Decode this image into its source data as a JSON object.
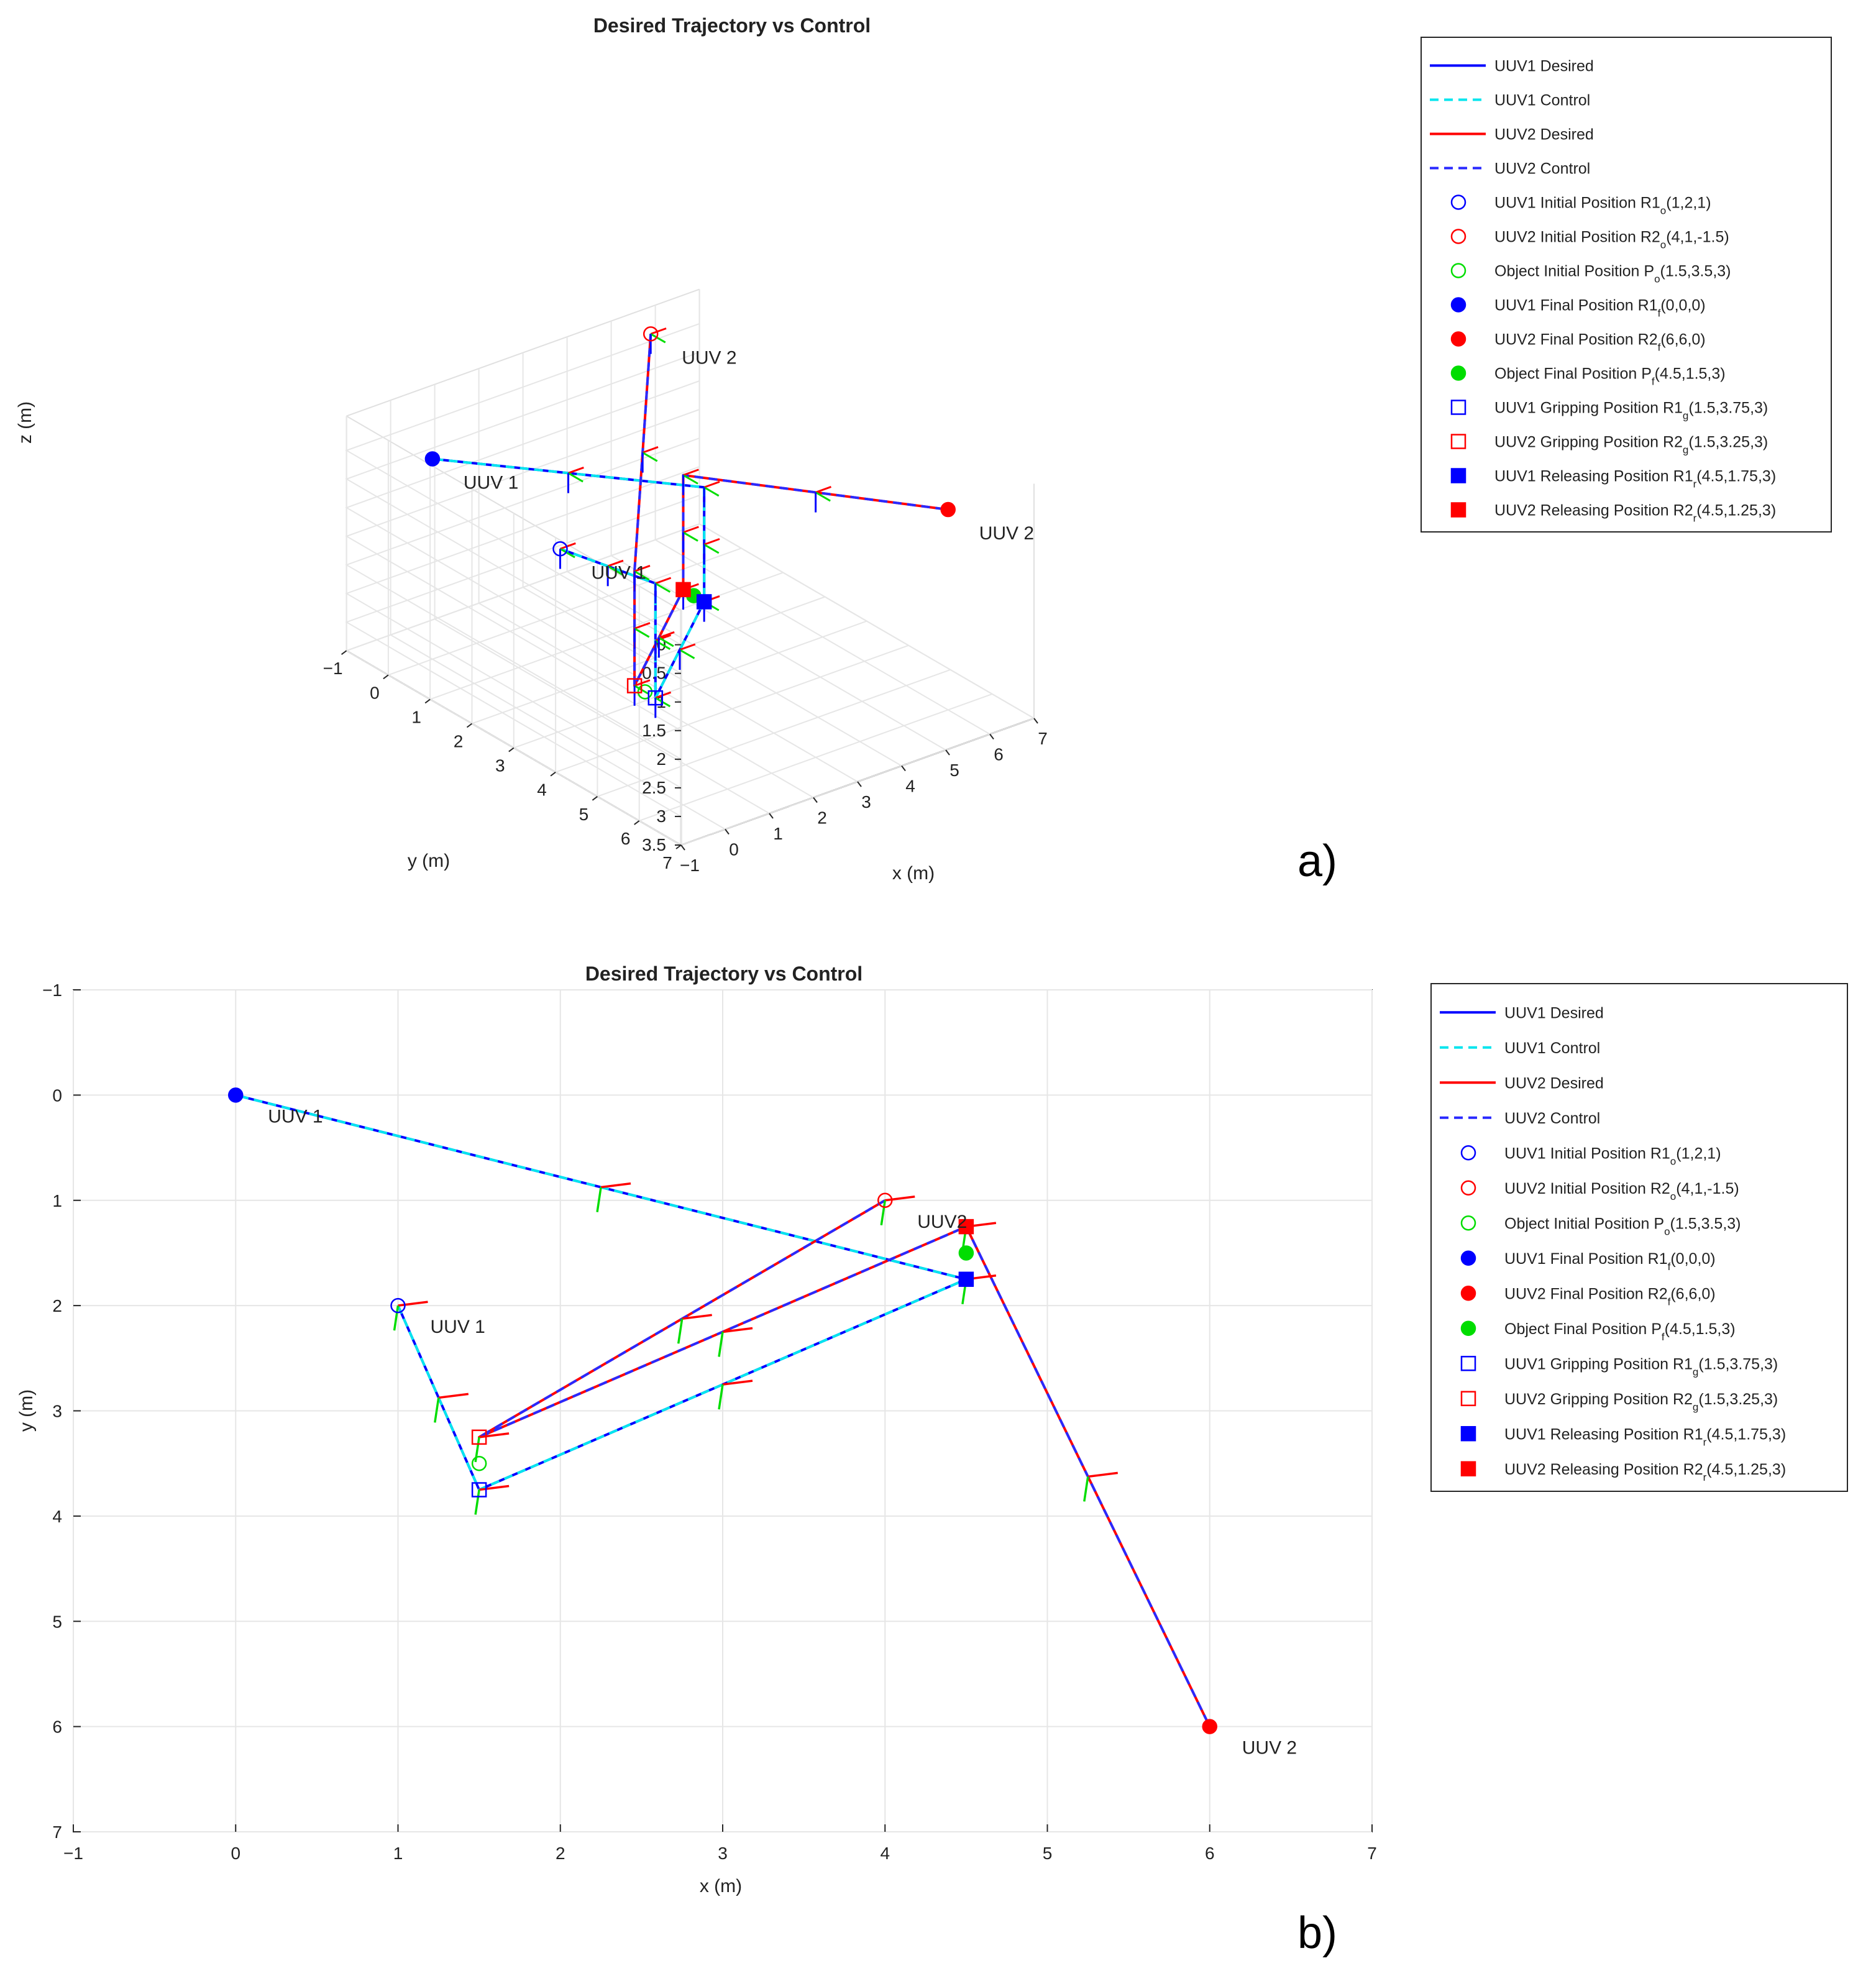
{
  "colors": {
    "uuv1_desired": "#0000ff",
    "uuv1_control": "#00e5ee",
    "uuv2_desired": "#ff0000",
    "uuv2_control": "#2929ff",
    "object": "#00dd00",
    "grid": "#e6e6e6",
    "axis": "#262626"
  },
  "panel_a_label": "a)",
  "panel_b_label": "b)",
  "legend_entries": [
    {
      "label": "UUV1 Desired",
      "sub": "",
      "tail": "",
      "marker": "line-solid",
      "color": "#0000ff"
    },
    {
      "label": "UUV1 Control",
      "sub": "",
      "tail": "",
      "marker": "line-dashed",
      "color": "#00e5ee"
    },
    {
      "label": "UUV2 Desired",
      "sub": "",
      "tail": "",
      "marker": "line-solid",
      "color": "#ff0000"
    },
    {
      "label": "UUV2 Control",
      "sub": "",
      "tail": "",
      "marker": "line-dashed",
      "color": "#2929ff"
    },
    {
      "label": "UUV1 Initial Position R1",
      "sub": "o",
      "tail": "(1,2,1)",
      "marker": "circle-open",
      "color": "#0000ff"
    },
    {
      "label": "UUV2 Initial Position R2",
      "sub": "o",
      "tail": "(4,1,-1.5)",
      "marker": "circle-open",
      "color": "#ff0000"
    },
    {
      "label": "Object Initial Position P",
      "sub": "o",
      "tail": "(1.5,3.5,3)",
      "marker": "circle-open",
      "color": "#00dd00"
    },
    {
      "label": "UUV1 Final Position R1",
      "sub": "f",
      "tail": "(0,0,0)",
      "marker": "circle-filled",
      "color": "#0000ff"
    },
    {
      "label": "UUV2 Final Position R2",
      "sub": "f",
      "tail": "(6,6,0)",
      "marker": "circle-filled",
      "color": "#ff0000"
    },
    {
      "label": "Object Final Position P",
      "sub": "f",
      "tail": "(4.5,1.5,3)",
      "marker": "circle-filled",
      "color": "#00dd00"
    },
    {
      "label": "UUV1 Gripping Position R1",
      "sub": "g",
      "tail": "(1.5,3.75,3)",
      "marker": "square-open",
      "color": "#0000ff"
    },
    {
      "label": "UUV2 Gripping Position R2",
      "sub": "g",
      "tail": "(1.5,3.25,3)",
      "marker": "square-open",
      "color": "#ff0000"
    },
    {
      "label": "UUV1 Releasing Position R1",
      "sub": "r",
      "tail": "(4.5,1.75,3)",
      "marker": "square-filled",
      "color": "#0000ff"
    },
    {
      "label": "UUV2 Releasing Position R2",
      "sub": "r",
      "tail": "(4.5,1.25,3)",
      "marker": "square-filled",
      "color": "#ff0000"
    }
  ],
  "chart_data": [
    {
      "type": "line",
      "view": "3d",
      "title": "Desired Trajectory vs Control",
      "xlabel": "x (m)",
      "ylabel": "y (m)",
      "zlabel": "z (m)",
      "xlim": [
        -1,
        7
      ],
      "ylim": [
        -1,
        7
      ],
      "zlim": [
        -0.5,
        3.5
      ],
      "z_reversed": true,
      "xticks": [
        "−1",
        "0",
        "1",
        "2",
        "3",
        "4",
        "5",
        "6",
        "7"
      ],
      "yticks": [
        "−1",
        "0",
        "1",
        "2",
        "3",
        "4",
        "5",
        "6",
        "7"
      ],
      "zticks": [
        "0",
        "0.5",
        "1",
        "1.5",
        "2",
        "2.5",
        "3",
        "3.5"
      ],
      "grid": true,
      "legend_position": "outside-right",
      "annotations": [
        {
          "text": "UUV 1",
          "at": [
            0,
            0,
            0
          ]
        },
        {
          "text": "UUV 1",
          "at": [
            1,
            2,
            1
          ]
        },
        {
          "text": "UUV 2",
          "at": [
            6,
            6,
            0
          ]
        },
        {
          "text": "UUV 2",
          "at": [
            4,
            1,
            -1.5
          ]
        }
      ],
      "series": [
        {
          "name": "UUV1 Desired",
          "points": [
            [
              1,
              2,
              1
            ],
            [
              1.5,
              3.75,
              1
            ],
            [
              1.5,
              3.75,
              3
            ],
            [
              4.5,
              1.75,
              3
            ],
            [
              4.5,
              1.75,
              1
            ],
            [
              0,
              0,
              0
            ]
          ]
        },
        {
          "name": "UUV1 Control",
          "points": [
            [
              1,
              2,
              1
            ],
            [
              1.5,
              3.75,
              1
            ],
            [
              1.5,
              3.75,
              3
            ],
            [
              4.5,
              1.75,
              3
            ],
            [
              4.5,
              1.75,
              1
            ],
            [
              0,
              0,
              0
            ]
          ]
        },
        {
          "name": "UUV2 Desired",
          "points": [
            [
              4,
              1,
              -1.5
            ],
            [
              1.5,
              3.25,
              1
            ],
            [
              1.5,
              3.25,
              3
            ],
            [
              4.5,
              1.25,
              3
            ],
            [
              4.5,
              1.25,
              1
            ],
            [
              6,
              6,
              0
            ]
          ]
        },
        {
          "name": "UUV2 Control",
          "points": [
            [
              4,
              1,
              -1.5
            ],
            [
              1.5,
              3.25,
              1
            ],
            [
              1.5,
              3.25,
              3
            ],
            [
              4.5,
              1.25,
              3
            ],
            [
              4.5,
              1.25,
              1
            ],
            [
              6,
              6,
              0
            ]
          ]
        }
      ],
      "markers": [
        {
          "series": "UUV1 Initial Position",
          "at": [
            1,
            2,
            1
          ],
          "shape": "circle-open",
          "color": "#0000ff"
        },
        {
          "series": "UUV2 Initial Position",
          "at": [
            4,
            1,
            -1.5
          ],
          "shape": "circle-open",
          "color": "#ff0000"
        },
        {
          "series": "Object Initial Position",
          "at": [
            1.5,
            3.5,
            3
          ],
          "shape": "circle-open",
          "color": "#00dd00"
        },
        {
          "series": "UUV1 Final Position",
          "at": [
            0,
            0,
            0
          ],
          "shape": "circle-filled",
          "color": "#0000ff"
        },
        {
          "series": "UUV2 Final Position",
          "at": [
            6,
            6,
            0
          ],
          "shape": "circle-filled",
          "color": "#ff0000"
        },
        {
          "series": "Object Final Position",
          "at": [
            4.5,
            1.5,
            3
          ],
          "shape": "circle-filled",
          "color": "#00dd00"
        },
        {
          "series": "UUV1 Gripping Position",
          "at": [
            1.5,
            3.75,
            3
          ],
          "shape": "square-open",
          "color": "#0000ff"
        },
        {
          "series": "UUV2 Gripping Position",
          "at": [
            1.5,
            3.25,
            3
          ],
          "shape": "square-open",
          "color": "#ff0000"
        },
        {
          "series": "UUV1 Releasing Position",
          "at": [
            4.5,
            1.75,
            3
          ],
          "shape": "square-filled",
          "color": "#0000ff"
        },
        {
          "series": "UUV2 Releasing Position",
          "at": [
            4.5,
            1.25,
            3
          ],
          "shape": "square-filled",
          "color": "#ff0000"
        }
      ]
    },
    {
      "type": "line",
      "view": "top",
      "title": "Desired Trajectory vs Control",
      "xlabel": "x (m)",
      "ylabel": "y (m)",
      "xlim": [
        -1,
        7
      ],
      "ylim": [
        -1,
        7
      ],
      "y_reversed": true,
      "xticks": [
        "−1",
        "0",
        "1",
        "2",
        "3",
        "4",
        "5",
        "6",
        "7"
      ],
      "yticks": [
        "−1",
        "0",
        "1",
        "2",
        "3",
        "4",
        "5",
        "6",
        "7"
      ],
      "grid": true,
      "legend_position": "outside-right",
      "annotations": [
        {
          "text": "UUV 1",
          "at": [
            0,
            0
          ]
        },
        {
          "text": "UUV 1",
          "at": [
            1,
            2
          ]
        },
        {
          "text": "UUV 2",
          "at": [
            6,
            6
          ]
        },
        {
          "text": "UUV2",
          "at": [
            4,
            1
          ]
        }
      ],
      "series": [
        {
          "name": "UUV1 Desired",
          "points": [
            [
              1,
              2
            ],
            [
              1.5,
              3.75
            ],
            [
              4.5,
              1.75
            ],
            [
              0,
              0
            ]
          ]
        },
        {
          "name": "UUV1 Control",
          "points": [
            [
              1,
              2
            ],
            [
              1.5,
              3.75
            ],
            [
              4.5,
              1.75
            ],
            [
              0,
              0
            ]
          ]
        },
        {
          "name": "UUV2 Desired",
          "points": [
            [
              4,
              1
            ],
            [
              1.5,
              3.25
            ],
            [
              4.5,
              1.25
            ],
            [
              6,
              6
            ]
          ]
        },
        {
          "name": "UUV2 Control",
          "points": [
            [
              4,
              1
            ],
            [
              1.5,
              3.25
            ],
            [
              4.5,
              1.25
            ],
            [
              6,
              6
            ]
          ]
        }
      ],
      "markers": [
        {
          "series": "UUV1 Initial Position",
          "at": [
            1,
            2
          ],
          "shape": "circle-open",
          "color": "#0000ff"
        },
        {
          "series": "UUV2 Initial Position",
          "at": [
            4,
            1
          ],
          "shape": "circle-open",
          "color": "#ff0000"
        },
        {
          "series": "Object Initial Position",
          "at": [
            1.5,
            3.5
          ],
          "shape": "circle-open",
          "color": "#00dd00"
        },
        {
          "series": "UUV1 Final Position",
          "at": [
            0,
            0
          ],
          "shape": "circle-filled",
          "color": "#0000ff"
        },
        {
          "series": "UUV2 Final Position",
          "at": [
            6,
            6
          ],
          "shape": "circle-filled",
          "color": "#ff0000"
        },
        {
          "series": "Object Final Position",
          "at": [
            4.5,
            1.5
          ],
          "shape": "circle-filled",
          "color": "#00dd00"
        },
        {
          "series": "UUV1 Gripping Position",
          "at": [
            1.5,
            3.75
          ],
          "shape": "square-open",
          "color": "#0000ff"
        },
        {
          "series": "UUV2 Gripping Position",
          "at": [
            1.5,
            3.25
          ],
          "shape": "square-open",
          "color": "#ff0000"
        },
        {
          "series": "UUV1 Releasing Position",
          "at": [
            4.5,
            1.75
          ],
          "shape": "square-filled",
          "color": "#0000ff"
        },
        {
          "series": "UUV2 Releasing Position",
          "at": [
            4.5,
            1.25
          ],
          "shape": "square-filled",
          "color": "#ff0000"
        }
      ]
    }
  ]
}
